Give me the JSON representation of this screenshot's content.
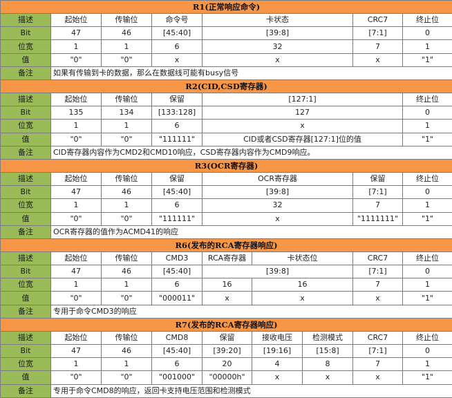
{
  "labels": {
    "describe": "描述",
    "bit": "Bit",
    "width": "位宽",
    "value": "值",
    "note": "备注"
  },
  "r1": {
    "title": "R1(正常响应命令)",
    "headers": [
      "起始位",
      "传输位",
      "命令号",
      "卡状态",
      "CRC7",
      "终止位"
    ],
    "bits": [
      "47",
      "46",
      "[45:40]",
      "[39:8]",
      "[7:1]",
      "0"
    ],
    "widths": [
      "1",
      "1",
      "6",
      "32",
      "7",
      "1"
    ],
    "values": [
      "\"0\"",
      "\"0\"",
      "x",
      "x",
      "x",
      "\"1\""
    ],
    "note": "如果有传输到卡的数据，那么在数据线可能有busy信号"
  },
  "r2": {
    "title": "R2(CID,CSD寄存器)",
    "headers": [
      "起始位",
      "传输位",
      "保留",
      "[127:1]",
      "终止位"
    ],
    "bits": [
      "135",
      "134",
      "[133:128]",
      "127",
      "0"
    ],
    "widths": [
      "1",
      "1",
      "6",
      "x",
      "1"
    ],
    "values": [
      "\"0\"",
      "\"0\"",
      "\"111111\"",
      "CID或者CSD寄存器[127:1]位的值",
      "\"1\""
    ],
    "note": "CID寄存器内容作为CMD2和CMD10响应，CSD寄存器内容作为CMD9响应。"
  },
  "r3": {
    "title": "R3(OCR寄存器)",
    "headers": [
      "起始位",
      "传输位",
      "保留",
      "OCR寄存器",
      "保留",
      "终止位"
    ],
    "bits": [
      "47",
      "46",
      "[45:40]",
      "[39:8]",
      "[7:1]",
      "0"
    ],
    "widths": [
      "1",
      "1",
      "6",
      "32",
      "7",
      "1"
    ],
    "values": [
      "\"0\"",
      "\"0\"",
      "\"111111\"",
      "x",
      "\"1111111\"",
      "\"1\""
    ],
    "note": "OCR寄存器的值作为ACMD41的响应"
  },
  "r6": {
    "title": "R6(发布的RCA寄存器响应)",
    "headers": [
      "起始位",
      "传输位",
      "CMD3",
      "RCA寄存器",
      "卡状态位",
      "CRC7",
      "终止位"
    ],
    "bits": [
      "47",
      "46",
      "[45:40]",
      "[39:8]",
      "[7:1]",
      "0"
    ],
    "widths": [
      "1",
      "1",
      "6",
      "16",
      "16",
      "7",
      "1"
    ],
    "values": [
      "\"0\"",
      "\"0\"",
      "\"000011\"",
      "x",
      "x",
      "x",
      "\"1\""
    ],
    "note": "专用于命令CMD3的响应"
  },
  "r7": {
    "title": "R7(发布的RCA寄存器响应)",
    "headers": [
      "起始位",
      "传输位",
      "CMD8",
      "保留",
      "接收电压",
      "检测模式",
      "CRC7",
      "终止位"
    ],
    "bits": [
      "47",
      "46",
      "[45:40]",
      "[39:20]",
      "[19:16]",
      "[15:8]",
      "[7:1]",
      "0"
    ],
    "widths": [
      "1",
      "1",
      "6",
      "20",
      "4",
      "8",
      "7",
      "1"
    ],
    "values": [
      "\"0\"",
      "\"0\"",
      "\"001000\"",
      "\"00000h\"",
      "x",
      "x",
      "x",
      "\"1\""
    ],
    "note": "专用于命令CMD8的响应，返回卡支持电压范围和检测模式"
  }
}
